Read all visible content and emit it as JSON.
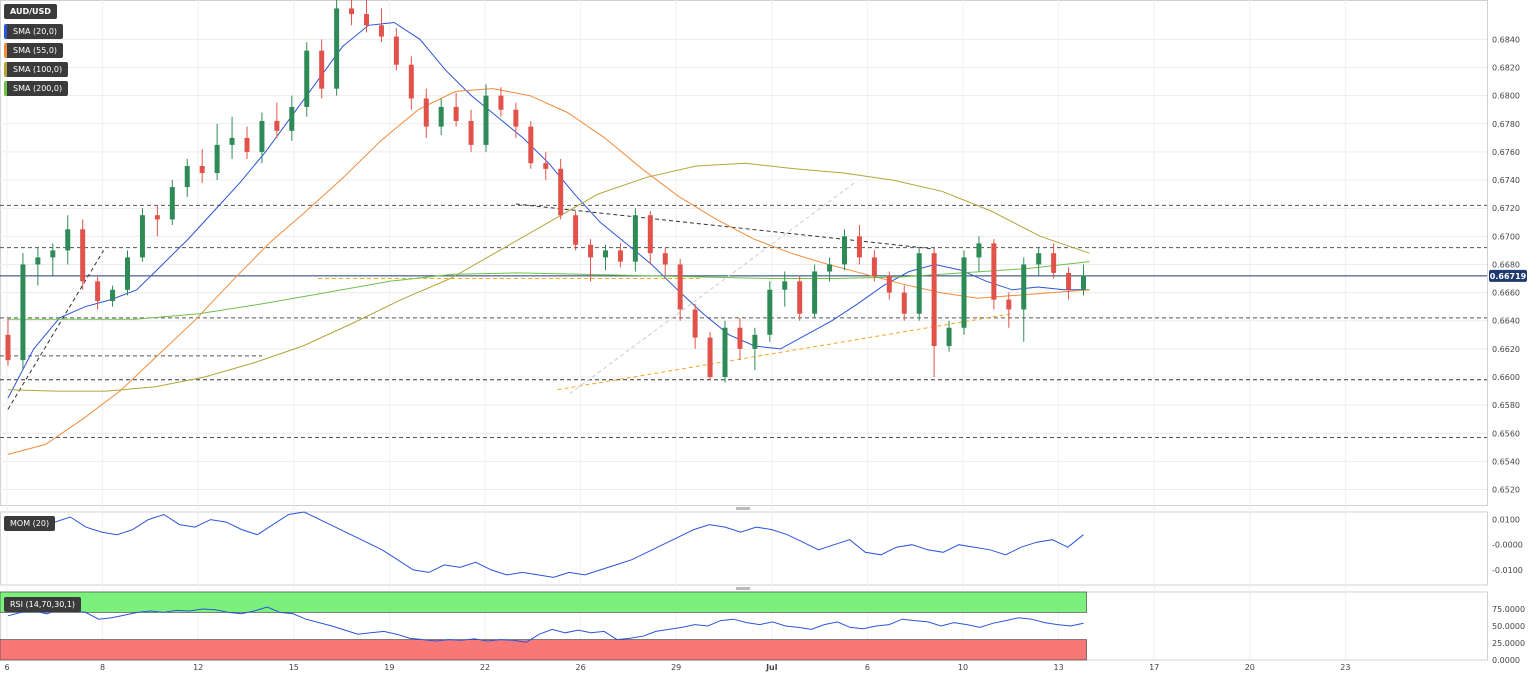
{
  "chart_data": {
    "type": "candlestick",
    "symbol": "AUD/USD",
    "last_price": "0.66719",
    "indicators": [
      {
        "name": "SMA (20,0)",
        "color": "#2b55d8"
      },
      {
        "name": "SMA (55,0)",
        "color": "#f08c3c"
      },
      {
        "name": "SMA (100,0)",
        "color": "#b5a43a"
      },
      {
        "name": "SMA (200,0)",
        "color": "#6ec24a"
      }
    ],
    "price_axis": {
      "ticks": [
        "0.6840",
        "0.6820",
        "0.6800",
        "0.6780",
        "0.6760",
        "0.6740",
        "0.6720",
        "0.6700",
        "0.6680",
        "0.6660",
        "0.6640",
        "0.6620",
        "0.6600",
        "0.6580",
        "0.6560",
        "0.6540",
        "0.6520"
      ],
      "range": [
        0.6509,
        0.6868
      ]
    },
    "x_axis": {
      "labels": [
        {
          "t": 0,
          "text": "6"
        },
        {
          "t": 8,
          "text": "8"
        },
        {
          "t": 16,
          "text": "12"
        },
        {
          "t": 24,
          "text": "15"
        },
        {
          "t": 32,
          "text": "19"
        },
        {
          "t": 40,
          "text": "22"
        },
        {
          "t": 48,
          "text": "26"
        },
        {
          "t": 56,
          "text": "29"
        },
        {
          "t": 64,
          "text": "Jul"
        },
        {
          "t": 72,
          "text": "6"
        },
        {
          "t": 80,
          "text": "10"
        },
        {
          "t": 88,
          "text": "13"
        },
        {
          "t": 96,
          "text": "17"
        },
        {
          "t": 104,
          "text": "20"
        },
        {
          "t": 112,
          "text": "23"
        }
      ]
    },
    "horizontal_levels": [
      {
        "price": 0.6722,
        "color": "#555555"
      },
      {
        "price": 0.6692,
        "color": "#555555"
      },
      {
        "price": 0.6642,
        "color": "#555555"
      },
      {
        "price": 0.6615,
        "color": "#555555"
      },
      {
        "price": 0.6598,
        "color": "#333333"
      },
      {
        "price": 0.6557,
        "color": "#555555"
      },
      {
        "price": 0.667,
        "color": "#f5a623"
      }
    ],
    "trend_lines": [
      {
        "from": [
          42.5,
          0.6723
        ],
        "to": [
          77.5,
          0.6691
        ],
        "color": "#333333"
      },
      {
        "from": [
          46,
          0.6591
        ],
        "to": [
          84,
          0.6645
        ],
        "color": "#f5a623"
      },
      {
        "from": [
          47,
          0.6588
        ],
        "to": [
          71,
          0.6739
        ],
        "color": "#cccccc"
      },
      {
        "from": [
          0,
          0.6577
        ],
        "to": [
          8,
          0.669
        ],
        "color": "#333333"
      }
    ],
    "candles": [
      [
        0.663,
        0.6642,
        0.6608,
        0.6612
      ],
      [
        0.6612,
        0.6688,
        0.6605,
        0.668
      ],
      [
        0.668,
        0.6692,
        0.6665,
        0.6685
      ],
      [
        0.6685,
        0.6695,
        0.6672,
        0.669
      ],
      [
        0.669,
        0.6715,
        0.668,
        0.6705
      ],
      [
        0.6705,
        0.6712,
        0.6662,
        0.6668
      ],
      [
        0.6668,
        0.6672,
        0.6648,
        0.6654
      ],
      [
        0.6654,
        0.6665,
        0.665,
        0.6662
      ],
      [
        0.6662,
        0.669,
        0.6658,
        0.6685
      ],
      [
        0.6685,
        0.672,
        0.6682,
        0.6715
      ],
      [
        0.6715,
        0.6722,
        0.67,
        0.6712
      ],
      [
        0.6712,
        0.674,
        0.6708,
        0.6735
      ],
      [
        0.6735,
        0.6755,
        0.6728,
        0.675
      ],
      [
        0.675,
        0.6762,
        0.6738,
        0.6745
      ],
      [
        0.6745,
        0.678,
        0.674,
        0.6765
      ],
      [
        0.6765,
        0.6785,
        0.6755,
        0.677
      ],
      [
        0.677,
        0.6778,
        0.6755,
        0.676
      ],
      [
        0.676,
        0.6788,
        0.6752,
        0.6782
      ],
      [
        0.6782,
        0.6795,
        0.677,
        0.6775
      ],
      [
        0.6775,
        0.68,
        0.6768,
        0.6792
      ],
      [
        0.6792,
        0.6838,
        0.6785,
        0.6832
      ],
      [
        0.6832,
        0.684,
        0.6798,
        0.6805
      ],
      [
        0.6805,
        0.687,
        0.68,
        0.6862
      ],
      [
        0.6862,
        0.6872,
        0.685,
        0.6858
      ],
      [
        0.6858,
        0.6868,
        0.6845,
        0.685
      ],
      [
        0.685,
        0.6862,
        0.6838,
        0.6842
      ],
      [
        0.6842,
        0.6848,
        0.6818,
        0.6822
      ],
      [
        0.6822,
        0.6828,
        0.679,
        0.6798
      ],
      [
        0.6798,
        0.6805,
        0.677,
        0.6778
      ],
      [
        0.6778,
        0.6798,
        0.6772,
        0.6792
      ],
      [
        0.6792,
        0.6802,
        0.6778,
        0.6782
      ],
      [
        0.6782,
        0.679,
        0.676,
        0.6765
      ],
      [
        0.6765,
        0.6808,
        0.676,
        0.68
      ],
      [
        0.68,
        0.6806,
        0.6785,
        0.679
      ],
      [
        0.679,
        0.6795,
        0.677,
        0.6778
      ],
      [
        0.6778,
        0.6782,
        0.6748,
        0.6752
      ],
      [
        0.6752,
        0.676,
        0.674,
        0.6748
      ],
      [
        0.6748,
        0.6755,
        0.6712,
        0.6715
      ],
      [
        0.6715,
        0.6718,
        0.669,
        0.6694
      ],
      [
        0.6694,
        0.6698,
        0.6668,
        0.6685
      ],
      [
        0.6685,
        0.6694,
        0.6676,
        0.669
      ],
      [
        0.669,
        0.6695,
        0.6678,
        0.6682
      ],
      [
        0.6682,
        0.672,
        0.6675,
        0.6715
      ],
      [
        0.6715,
        0.6718,
        0.668,
        0.6688
      ],
      [
        0.6688,
        0.6692,
        0.6672,
        0.668
      ],
      [
        0.668,
        0.6684,
        0.664,
        0.6648
      ],
      [
        0.6648,
        0.6652,
        0.662,
        0.6628
      ],
      [
        0.6628,
        0.6632,
        0.6598,
        0.66
      ],
      [
        0.66,
        0.664,
        0.6596,
        0.6635
      ],
      [
        0.6635,
        0.6642,
        0.6612,
        0.662
      ],
      [
        0.662,
        0.6635,
        0.6605,
        0.663
      ],
      [
        0.663,
        0.6668,
        0.6625,
        0.6662
      ],
      [
        0.6662,
        0.6675,
        0.665,
        0.6668
      ],
      [
        0.6668,
        0.6672,
        0.664,
        0.6645
      ],
      [
        0.6645,
        0.668,
        0.6642,
        0.6675
      ],
      [
        0.6675,
        0.6685,
        0.6668,
        0.668
      ],
      [
        0.668,
        0.6705,
        0.6676,
        0.67
      ],
      [
        0.67,
        0.6708,
        0.668,
        0.6685
      ],
      [
        0.6685,
        0.669,
        0.6668,
        0.6672
      ],
      [
        0.6672,
        0.6675,
        0.6655,
        0.666
      ],
      [
        0.666,
        0.6665,
        0.664,
        0.6645
      ],
      [
        0.6645,
        0.6692,
        0.664,
        0.6688
      ],
      [
        0.6688,
        0.6692,
        0.66,
        0.6622
      ],
      [
        0.6622,
        0.664,
        0.6618,
        0.6635
      ],
      [
        0.6635,
        0.669,
        0.663,
        0.6685
      ],
      [
        0.6685,
        0.67,
        0.6675,
        0.6695
      ],
      [
        0.6695,
        0.6698,
        0.6648,
        0.6655
      ],
      [
        0.6655,
        0.666,
        0.6635,
        0.6648
      ],
      [
        0.6648,
        0.6685,
        0.6625,
        0.668
      ],
      [
        0.668,
        0.6692,
        0.6672,
        0.6688
      ],
      [
        0.6688,
        0.6695,
        0.667,
        0.6674
      ],
      [
        0.6674,
        0.6678,
        0.6655,
        0.6662
      ],
      [
        0.6662,
        0.668,
        0.6658,
        0.6672
      ]
    ],
    "sma": {
      "SMA (20,0)": [
        0.6585,
        0.662,
        0.6642,
        0.665,
        0.6655,
        0.6662,
        0.668,
        0.6698,
        0.6718,
        0.6738,
        0.676,
        0.6785,
        0.681,
        0.6835,
        0.685,
        0.6852,
        0.684,
        0.6818,
        0.68,
        0.6785,
        0.677,
        0.6752,
        0.673,
        0.671,
        0.6695,
        0.668,
        0.6662,
        0.6645,
        0.663,
        0.6622,
        0.662,
        0.663,
        0.664,
        0.6652,
        0.6665,
        0.6675,
        0.668,
        0.6676,
        0.6668,
        0.6662,
        0.6664,
        0.6662,
        0.6662
      ],
      "SMA (55,0)": [
        0.6545,
        0.6552,
        0.657,
        0.659,
        0.6615,
        0.664,
        0.6668,
        0.6695,
        0.6718,
        0.6742,
        0.6768,
        0.679,
        0.6803,
        0.6805,
        0.68,
        0.6788,
        0.677,
        0.6748,
        0.6728,
        0.6712,
        0.6698,
        0.6688,
        0.668,
        0.6673,
        0.6666,
        0.666,
        0.6656,
        0.6658,
        0.666,
        0.6662
      ],
      "SMA (100,0)": [
        0.6591,
        0.659,
        0.659,
        0.6593,
        0.66,
        0.661,
        0.6622,
        0.6638,
        0.6655,
        0.667,
        0.669,
        0.671,
        0.673,
        0.6742,
        0.675,
        0.6752,
        0.6748,
        0.6745,
        0.674,
        0.6732,
        0.6718,
        0.67,
        0.6688
      ],
      "SMA (200,0)": [
        0.6641,
        0.6641,
        0.6641,
        0.6645,
        0.6652,
        0.666,
        0.6668,
        0.6673,
        0.6674,
        0.6673,
        0.6672,
        0.6671,
        0.667,
        0.667,
        0.6671,
        0.6674,
        0.6677,
        0.6682
      ]
    },
    "momentum": {
      "name": "MOM (20)",
      "ticks": [
        "0.0100",
        "-0.0000",
        "-0.0100"
      ],
      "range": [
        -0.016,
        0.013
      ],
      "values": [
        0.006,
        0.008,
        0.01,
        0.009,
        0.011,
        0.007,
        0.005,
        0.004,
        0.006,
        0.01,
        0.012,
        0.008,
        0.007,
        0.01,
        0.009,
        0.006,
        0.004,
        0.008,
        0.012,
        0.013,
        0.01,
        0.007,
        0.004,
        0.001,
        -0.002,
        -0.006,
        -0.01,
        -0.011,
        -0.008,
        -0.009,
        -0.007,
        -0.01,
        -0.012,
        -0.011,
        -0.012,
        -0.013,
        -0.011,
        -0.012,
        -0.01,
        -0.008,
        -0.006,
        -0.003,
        0.0,
        0.003,
        0.006,
        0.008,
        0.007,
        0.005,
        0.007,
        0.006,
        0.004,
        0.001,
        -0.002,
        0.0,
        0.002,
        -0.003,
        -0.004,
        -0.001,
        0.0,
        -0.002,
        -0.003,
        0.0,
        -0.001,
        -0.002,
        -0.004,
        -0.001,
        0.001,
        0.002,
        -0.001,
        0.004
      ]
    },
    "rsi": {
      "name": "RSI (14,70,30,1)",
      "ticks": [
        "75.0000",
        "50.0000",
        "25.0000",
        "0.0000"
      ],
      "range": [
        0,
        100
      ],
      "overbought": 70,
      "oversold": 30,
      "values": [
        65,
        70,
        72,
        68,
        75,
        72,
        70,
        60,
        62,
        66,
        70,
        72,
        70,
        73,
        72,
        75,
        74,
        70,
        68,
        72,
        78,
        70,
        68,
        60,
        55,
        50,
        44,
        38,
        40,
        42,
        38,
        32,
        30,
        28,
        30,
        29,
        31,
        28,
        30,
        29,
        26,
        38,
        45,
        40,
        44,
        40,
        42,
        30,
        32,
        35,
        42,
        45,
        48,
        52,
        50,
        58,
        60,
        55,
        52,
        56,
        50,
        48,
        45,
        52,
        56,
        48,
        46,
        50,
        52,
        60,
        58,
        56,
        50,
        55,
        52,
        48,
        54,
        58,
        62,
        60,
        55,
        52,
        50,
        54
      ]
    }
  }
}
